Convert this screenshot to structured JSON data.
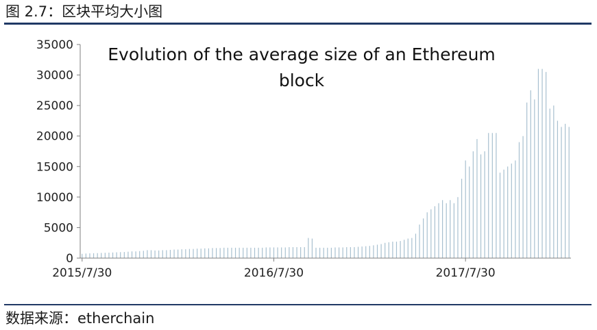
{
  "header": {
    "figure_caption": "图 2.7：区块平均大小图"
  },
  "footer": {
    "source": "数据来源：etherchain"
  },
  "chart_data": {
    "type": "bar",
    "title_lines": [
      "Evolution of the average size of an Ethereum",
      "block"
    ],
    "xlabel": "",
    "ylabel": "",
    "ylim": [
      0,
      35000
    ],
    "y_ticks": [
      0,
      5000,
      10000,
      15000,
      20000,
      25000,
      30000,
      35000
    ],
    "x_tick_labels": [
      "2015/7/30",
      "2016/7/30",
      "2017/7/30"
    ],
    "x_tick_positions": [
      0,
      50,
      100
    ],
    "grid": false,
    "legend": "none",
    "bar_color": "#a7bfcf",
    "values": [
      700,
      750,
      780,
      800,
      820,
      850,
      870,
      900,
      920,
      950,
      980,
      1000,
      1050,
      1100,
      1100,
      1150,
      1200,
      1300,
      1300,
      1250,
      1250,
      1300,
      1300,
      1350,
      1400,
      1400,
      1450,
      1450,
      1500,
      1500,
      1550,
      1550,
      1600,
      1600,
      1650,
      1650,
      1650,
      1700,
      1700,
      1700,
      1700,
      1700,
      1700,
      1700,
      1700,
      1700,
      1700,
      1700,
      1750,
      1750,
      1750,
      1750,
      1750,
      1750,
      1800,
      1800,
      1800,
      1800,
      1800,
      3300,
      3200,
      1700,
      1700,
      1700,
      1700,
      1700,
      1750,
      1750,
      1750,
      1800,
      1800,
      1800,
      1850,
      1900,
      1950,
      2000,
      2100,
      2200,
      2300,
      2500,
      2600,
      2700,
      2700,
      2800,
      3000,
      3200,
      3300,
      4000,
      5500,
      6500,
      7500,
      8000,
      8500,
      9000,
      9500,
      9000,
      9500,
      9000,
      10000,
      13000,
      16000,
      15000,
      17500,
      19500,
      17000,
      17500,
      20500,
      20500,
      20500,
      14000,
      14500,
      15000,
      15500,
      16000,
      19000,
      20000,
      25500,
      27500,
      26000,
      31000,
      31000,
      30500,
      24500,
      25000,
      22500,
      21500,
      22000,
      21500
    ]
  }
}
